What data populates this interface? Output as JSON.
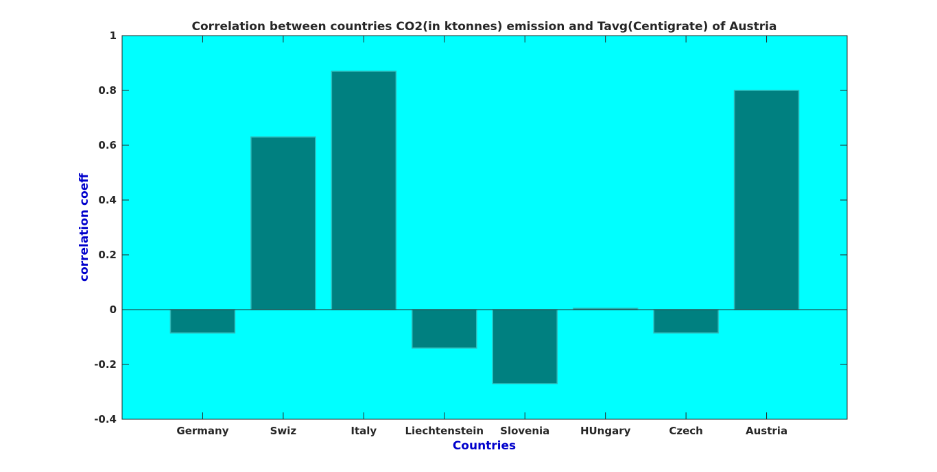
{
  "chart_data": {
    "type": "bar",
    "title": "Correlation between countries CO2(in ktonnes) emission and Tavg(Centigrate) of Austria",
    "xlabel": "Countries",
    "ylabel": "correlation coeff",
    "categories": [
      "Germany",
      "Swiz",
      "Italy",
      "Liechtenstein",
      "Slovenia",
      "HUngary",
      "Czech",
      "Austria"
    ],
    "values": [
      -0.085,
      0.63,
      0.87,
      -0.14,
      -0.27,
      0.005,
      -0.085,
      0.8
    ],
    "ylim": [
      -0.4,
      1
    ],
    "yticks": [
      -0.4,
      -0.2,
      0,
      0.2,
      0.4,
      0.6,
      0.8,
      1
    ],
    "ytick_labels": [
      "-0.4",
      "-0.2",
      "0",
      "0.2",
      "0.4",
      "0.6",
      "0.8",
      "1"
    ],
    "grid": false,
    "colors": {
      "plot_background": "#00ffff",
      "bar_fill": "#008080",
      "bar_edge": "#2fb8b8",
      "axis_label": "#0000cc",
      "text": "#262626"
    }
  }
}
